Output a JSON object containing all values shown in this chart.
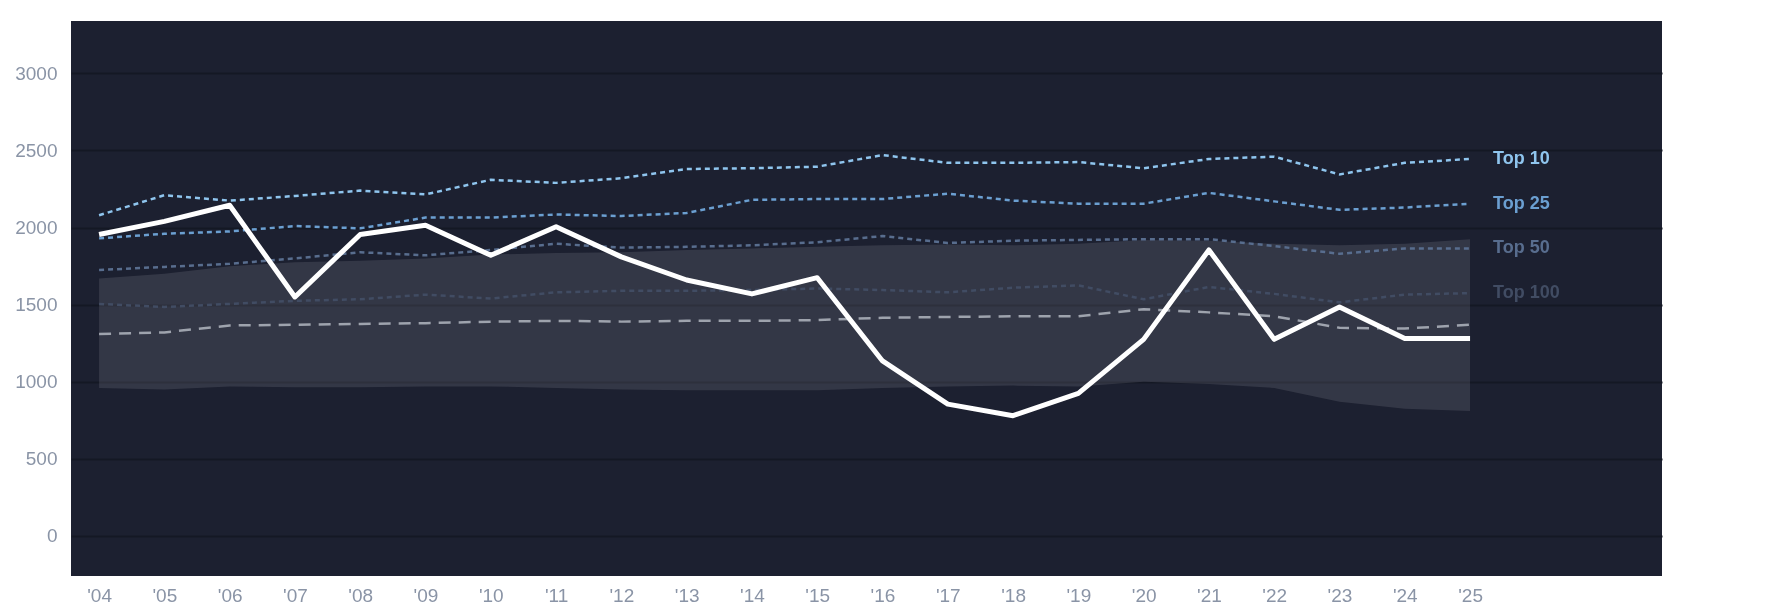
{
  "chart_data": {
    "type": "line",
    "categories": [
      "'04",
      "'05",
      "'06",
      "'07",
      "'08",
      "'09",
      "'10",
      "'11",
      "'12",
      "'13",
      "'14",
      "'15",
      "'16",
      "'17",
      "'18",
      "'19",
      "'20",
      "'21",
      "'22",
      "'23",
      "'24",
      "'25"
    ],
    "ylim": [
      -260,
      3340
    ],
    "yticks": [
      0,
      500,
      1000,
      1500,
      2000,
      2500,
      3000
    ],
    "grid": "y",
    "series": [
      {
        "name": "Top 10",
        "color": "#8fc5ee",
        "line_style": "dotted",
        "values": [
          2080,
          2210,
          2175,
          2205,
          2240,
          2215,
          2310,
          2290,
          2320,
          2380,
          2385,
          2395,
          2470,
          2420,
          2420,
          2425,
          2385,
          2445,
          2460,
          2345,
          2420,
          2445
        ]
      },
      {
        "name": "Top 25",
        "color": "#6b9fd1",
        "line_style": "dotted",
        "values": [
          1930,
          1960,
          1975,
          2010,
          1995,
          2065,
          2065,
          2085,
          2075,
          2095,
          2180,
          2185,
          2185,
          2220,
          2175,
          2155,
          2155,
          2225,
          2170,
          2115,
          2130,
          2155
        ]
      },
      {
        "name": "Top 50",
        "color": "#586d8e",
        "line_style": "dotted",
        "values": [
          1725,
          1745,
          1765,
          1800,
          1840,
          1820,
          1855,
          1895,
          1870,
          1875,
          1885,
          1905,
          1945,
          1900,
          1915,
          1920,
          1925,
          1925,
          1880,
          1830,
          1865,
          1865
        ]
      },
      {
        "name": "Top 100",
        "color": "#414c63",
        "line_style": "dotted",
        "values": [
          1505,
          1485,
          1505,
          1525,
          1535,
          1565,
          1540,
          1580,
          1590,
          1590,
          1595,
          1605,
          1595,
          1580,
          1610,
          1625,
          1535,
          1615,
          1570,
          1515,
          1565,
          1575
        ]
      },
      {
        "color": "#9ea3ad",
        "line_style": "dashed",
        "values": [
          1310,
          1320,
          1365,
          1370,
          1375,
          1380,
          1390,
          1395,
          1390,
          1395,
          1395,
          1400,
          1415,
          1420,
          1425,
          1425,
          1470,
          1450,
          1425,
          1350,
          1345,
          1370
        ],
        "lower": [
          960,
          950,
          970,
          965,
          965,
          970,
          970,
          960,
          950,
          945,
          945,
          945,
          960,
          970,
          975,
          970,
          1000,
          985,
          960,
          870,
          825,
          810
        ],
        "upper": [
          1670,
          1700,
          1750,
          1775,
          1785,
          1800,
          1825,
          1835,
          1840,
          1855,
          1865,
          1875,
          1885,
          1890,
          1885,
          1895,
          1920,
          1915,
          1895,
          1885,
          1895,
          1925
        ]
      },
      {
        "color": "#ffffff",
        "line_style": "solid",
        "values": [
          1955,
          2040,
          2145,
          1550,
          1955,
          2015,
          1820,
          2005,
          1810,
          1660,
          1570,
          1675,
          1135,
          855,
          780,
          925,
          1275,
          1855,
          1275,
          1485,
          1280,
          1280
        ]
      }
    ]
  }
}
